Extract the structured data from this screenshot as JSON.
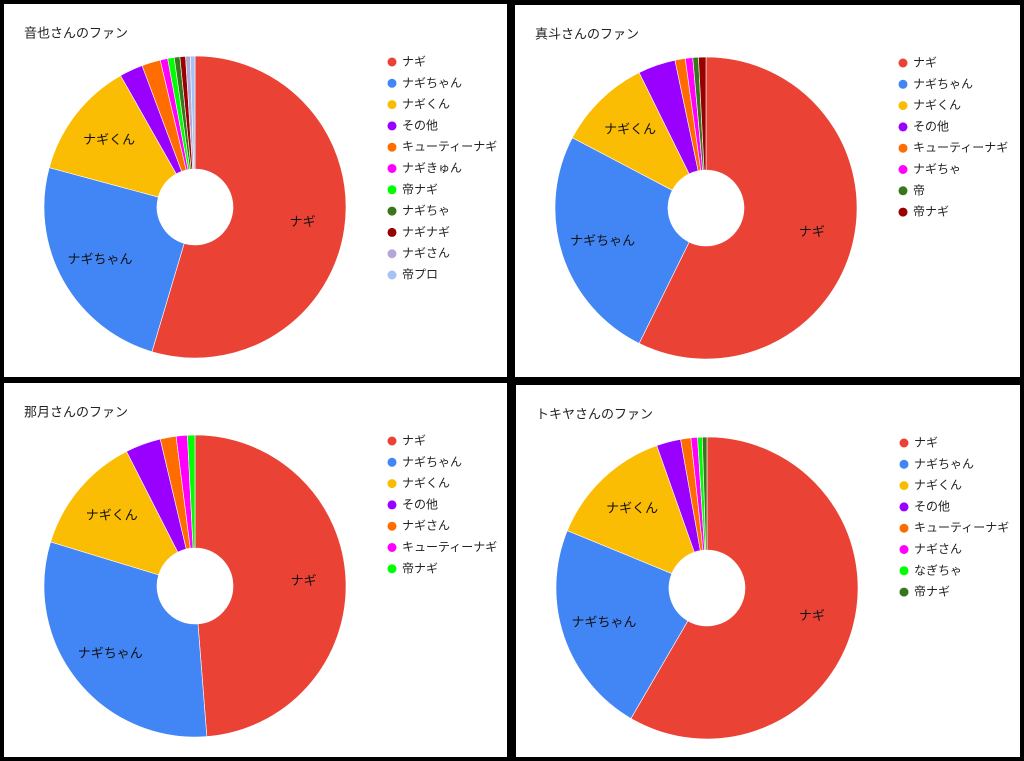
{
  "chart_data": [
    {
      "type": "donut",
      "title": "音也さんのファン",
      "categories": [
        "ナギ",
        "ナギちゃん",
        "ナギくん",
        "その他",
        "キューティーナギ",
        "ナギきゅん",
        "帝ナギ",
        "ナギちゃ",
        "ナギナギ",
        "ナギさん",
        "帝プロ"
      ],
      "values": [
        54.6,
        24.6,
        12.6,
        2.5,
        2.0,
        0.8,
        0.7,
        0.6,
        0.6,
        0.5,
        0.5
      ],
      "colors": [
        "#ea4335",
        "#4285f4",
        "#fbbc04",
        "#9900ff",
        "#ff6d01",
        "#ff00ff",
        "#00ff00",
        "#38761d",
        "#990000",
        "#b4a7d6",
        "#a4c2f4"
      ]
    },
    {
      "type": "donut",
      "title": "真斗さんのファン",
      "categories": [
        "ナギ",
        "ナギちゃん",
        "ナギくん",
        "その他",
        "キューティーナギ",
        "ナギちゃ",
        "帝",
        "帝ナギ"
      ],
      "values": [
        57.3,
        25.4,
        10.0,
        4.0,
        1.1,
        0.8,
        0.6,
        0.8
      ],
      "colors": [
        "#ea4335",
        "#4285f4",
        "#fbbc04",
        "#9900ff",
        "#ff6d01",
        "#ff00ff",
        "#38761d",
        "#990000"
      ]
    },
    {
      "type": "donut",
      "title": "那月さんのファン",
      "categories": [
        "ナギ",
        "ナギちゃん",
        "ナギくん",
        "その他",
        "ナギさん",
        "キューティーナギ",
        "帝ナギ"
      ],
      "values": [
        48.8,
        31.0,
        12.8,
        3.8,
        1.7,
        1.2,
        0.8
      ],
      "colors": [
        "#ea4335",
        "#4285f4",
        "#fbbc04",
        "#9900ff",
        "#ff6d01",
        "#ff00ff",
        "#00ff00"
      ]
    },
    {
      "type": "donut",
      "title": "トキヤさんのファン",
      "categories": [
        "ナギ",
        "ナギちゃん",
        "ナギくん",
        "その他",
        "キューティーナギ",
        "ナギさん",
        "なぎちゃ",
        "帝ナギ"
      ],
      "values": [
        58.4,
        22.8,
        13.4,
        2.6,
        1.1,
        0.7,
        0.5,
        0.5
      ],
      "colors": [
        "#ea4335",
        "#4285f4",
        "#fbbc04",
        "#9900ff",
        "#ff6d01",
        "#ff00ff",
        "#00ff00",
        "#38761d"
      ]
    }
  ]
}
